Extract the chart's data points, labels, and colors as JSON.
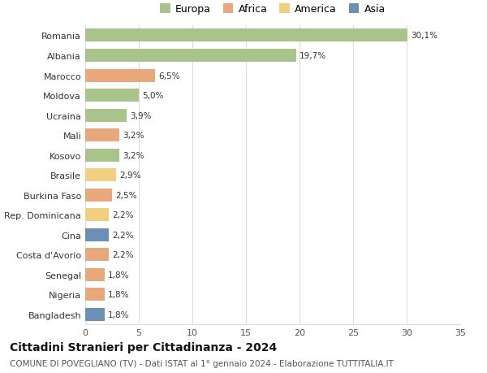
{
  "categories": [
    "Romania",
    "Albania",
    "Marocco",
    "Moldova",
    "Ucraina",
    "Mali",
    "Kosovo",
    "Brasile",
    "Burkina Faso",
    "Rep. Dominicana",
    "Cina",
    "Costa d'Avorio",
    "Senegal",
    "Nigeria",
    "Bangladesh"
  ],
  "values": [
    30.1,
    19.7,
    6.5,
    5.0,
    3.9,
    3.2,
    3.2,
    2.9,
    2.5,
    2.2,
    2.2,
    2.2,
    1.8,
    1.8,
    1.8
  ],
  "labels": [
    "30,1%",
    "19,7%",
    "6,5%",
    "5,0%",
    "3,9%",
    "3,2%",
    "3,2%",
    "2,9%",
    "2,5%",
    "2,2%",
    "2,2%",
    "2,2%",
    "1,8%",
    "1,8%",
    "1,8%"
  ],
  "colors": [
    "#a8c48a",
    "#a8c48a",
    "#e8a87c",
    "#a8c48a",
    "#a8c48a",
    "#e8a87c",
    "#a8c48a",
    "#f0d080",
    "#e8a87c",
    "#f0d080",
    "#6b8fb5",
    "#e8a87c",
    "#e8a87c",
    "#e8a87c",
    "#6b8fb5"
  ],
  "legend_labels": [
    "Europa",
    "Africa",
    "America",
    "Asia"
  ],
  "legend_colors": [
    "#a8c48a",
    "#e8a87c",
    "#f0d080",
    "#6b8fb5"
  ],
  "title": "Cittadini Stranieri per Cittadinanza - 2024",
  "subtitle": "COMUNE DI POVEGLIANO (TV) - Dati ISTAT al 1° gennaio 2024 - Elaborazione TUTTITALIA.IT",
  "xlim": [
    0,
    35
  ],
  "xticks": [
    0,
    5,
    10,
    15,
    20,
    25,
    30,
    35
  ],
  "background_color": "#ffffff",
  "grid_color": "#dddddd",
  "bar_height": 0.65,
  "title_fontsize": 10,
  "subtitle_fontsize": 7.5,
  "label_fontsize": 7.5,
  "tick_fontsize": 8,
  "legend_fontsize": 9
}
